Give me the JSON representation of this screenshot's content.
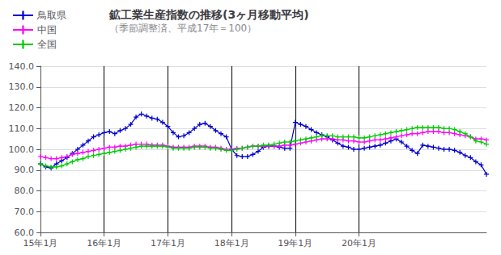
{
  "chart_data": {
    "type": "line",
    "title": "鉱工業生産指数の推移(3ヶ月移動平均)",
    "subtitle": "（季節調整済、平成17年＝100）",
    "categories": [
      "15年1月",
      null,
      null,
      null,
      null,
      null,
      null,
      null,
      null,
      null,
      null,
      null,
      "16年1月",
      null,
      null,
      null,
      null,
      null,
      null,
      null,
      null,
      null,
      null,
      null,
      "17年1月",
      null,
      null,
      null,
      null,
      null,
      null,
      null,
      null,
      null,
      null,
      null,
      "18年1月",
      null,
      null,
      null,
      null,
      null,
      null,
      null,
      null,
      null,
      null,
      null,
      "19年1月",
      null,
      null,
      null,
      null,
      null,
      null,
      null,
      null,
      null,
      null,
      null,
      "20年1月",
      null,
      null,
      null,
      null,
      null,
      null,
      null,
      null,
      null,
      null,
      null,
      null,
      null,
      null,
      null,
      null,
      null,
      null,
      null,
      null,
      null,
      null,
      null,
      null
    ],
    "series": [
      {
        "name": "鳥取県",
        "color": "#0000CC",
        "values": [
          93.0,
          91.5,
          91.0,
          93.0,
          94.5,
          96.0,
          98.0,
          100.0,
          102.0,
          104.0,
          106.0,
          107.0,
          108.0,
          108.5,
          107.5,
          109.0,
          110.0,
          112.0,
          115.5,
          117.0,
          116.0,
          115.0,
          114.5,
          113.0,
          111.0,
          108.0,
          106.0,
          106.5,
          108.0,
          110.0,
          112.0,
          112.5,
          111.0,
          109.0,
          107.5,
          106.0,
          100.0,
          97.0,
          96.5,
          96.5,
          97.5,
          99.0,
          101.0,
          101.5,
          101.5,
          101.0,
          100.5,
          100.5,
          113.0,
          112.0,
          111.0,
          109.5,
          108.0,
          107.0,
          106.0,
          104.5,
          103.0,
          101.5,
          101.0,
          100.0,
          100.0,
          100.5,
          101.0,
          101.5,
          102.0,
          103.0,
          104.0,
          105.0,
          103.5,
          101.5,
          99.5,
          98.0,
          102.0,
          101.5,
          101.0,
          100.5,
          100.0,
          100.0,
          99.5,
          98.5,
          97.0,
          96.0,
          94.0,
          92.5,
          88.0
        ]
      },
      {
        "name": "中国",
        "color": "#FF00FF",
        "values": [
          96.5,
          96.0,
          95.5,
          95.5,
          96.0,
          96.5,
          97.5,
          98.0,
          98.5,
          99.0,
          99.5,
          100.0,
          100.5,
          101.0,
          101.0,
          101.5,
          101.5,
          102.0,
          102.5,
          102.5,
          102.5,
          102.0,
          102.0,
          102.0,
          101.5,
          101.0,
          101.0,
          101.0,
          101.0,
          101.5,
          101.5,
          101.5,
          101.0,
          101.0,
          100.5,
          100.0,
          100.0,
          100.5,
          100.5,
          101.0,
          101.5,
          101.5,
          101.5,
          101.5,
          101.5,
          101.5,
          102.0,
          102.0,
          102.5,
          103.0,
          103.5,
          104.0,
          104.5,
          105.0,
          105.0,
          105.0,
          104.5,
          104.5,
          104.0,
          104.0,
          103.5,
          103.5,
          104.0,
          104.5,
          104.5,
          105.0,
          105.5,
          106.0,
          106.5,
          107.0,
          107.5,
          107.5,
          108.0,
          108.5,
          108.5,
          108.5,
          108.0,
          108.0,
          107.5,
          107.0,
          106.5,
          106.0,
          105.0,
          105.0,
          104.5
        ]
      },
      {
        "name": "全国",
        "color": "#00CC00",
        "values": [
          93.0,
          92.0,
          91.5,
          91.5,
          92.0,
          93.0,
          94.0,
          95.0,
          95.5,
          96.5,
          97.0,
          97.5,
          98.0,
          98.5,
          99.0,
          99.5,
          100.0,
          100.5,
          101.0,
          101.5,
          101.5,
          101.5,
          101.5,
          101.5,
          101.0,
          100.5,
          100.5,
          100.5,
          100.5,
          101.0,
          101.0,
          101.0,
          100.5,
          100.5,
          100.0,
          99.5,
          99.5,
          100.0,
          100.5,
          101.0,
          101.5,
          101.5,
          102.0,
          102.0,
          102.5,
          103.0,
          103.5,
          103.5,
          104.0,
          104.5,
          105.0,
          105.5,
          106.0,
          106.5,
          106.5,
          106.5,
          106.0,
          106.0,
          106.0,
          106.0,
          105.5,
          105.5,
          106.0,
          106.5,
          107.0,
          107.5,
          108.0,
          108.5,
          109.0,
          109.5,
          110.0,
          110.5,
          110.5,
          110.5,
          110.5,
          110.5,
          110.0,
          110.0,
          109.5,
          108.5,
          107.5,
          106.0,
          104.0,
          103.5,
          102.5
        ]
      }
    ],
    "ylim": [
      60.0,
      140.0
    ],
    "yticks": [
      {
        "value": 60.0,
        "label": "60.0"
      },
      {
        "value": 70.0,
        "label": "70.0"
      },
      {
        "value": 80.0,
        "label": "80.0"
      },
      {
        "value": 90.0,
        "label": "90.0"
      },
      {
        "value": 100.0,
        "label": "100.0"
      },
      {
        "value": 110.0,
        "label": "110.0"
      },
      {
        "value": 120.0,
        "label": "120.0"
      },
      {
        "value": 130.0,
        "label": "130.0"
      },
      {
        "value": 140.0,
        "label": "140.0"
      }
    ],
    "grid": true,
    "legend": "upper left",
    "marker": "plus"
  }
}
